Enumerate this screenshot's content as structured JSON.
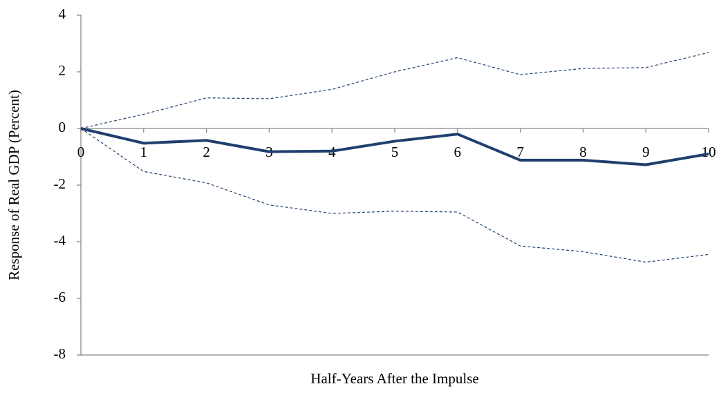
{
  "chart_data": {
    "type": "line",
    "y_label": "Response of Real GDP (Percent)",
    "x_label": "Half-Years After the Impulse",
    "x": [
      0,
      1,
      2,
      3,
      4,
      5,
      6,
      7,
      8,
      9,
      10
    ],
    "xlim": [
      0,
      10
    ],
    "xticks": [
      0,
      1,
      2,
      3,
      4,
      5,
      6,
      7,
      8,
      9,
      10
    ],
    "ylim": [
      -8,
      4
    ],
    "yticks": [
      -8,
      -6,
      -4,
      -2,
      0,
      2,
      4
    ],
    "series": [
      {
        "color": "#1f3f6e",
        "linestyle": "solid",
        "values": [
          0,
          -0.52,
          -0.42,
          -0.82,
          -0.8,
          -0.45,
          -0.2,
          -1.12,
          -1.12,
          -1.28,
          -0.9
        ]
      },
      {
        "color": "#1f3f6e",
        "linestyle": "dashed",
        "values": [
          0,
          0.5,
          1.08,
          1.05,
          1.38,
          2.0,
          2.5,
          1.9,
          2.12,
          2.15,
          2.68
        ]
      },
      {
        "color": "#1f3f6e",
        "linestyle": "dashed",
        "values": [
          0,
          -1.52,
          -1.92,
          -2.7,
          -3.0,
          -2.92,
          -2.95,
          -4.15,
          -4.35,
          -4.72,
          -4.45
        ]
      }
    ]
  }
}
